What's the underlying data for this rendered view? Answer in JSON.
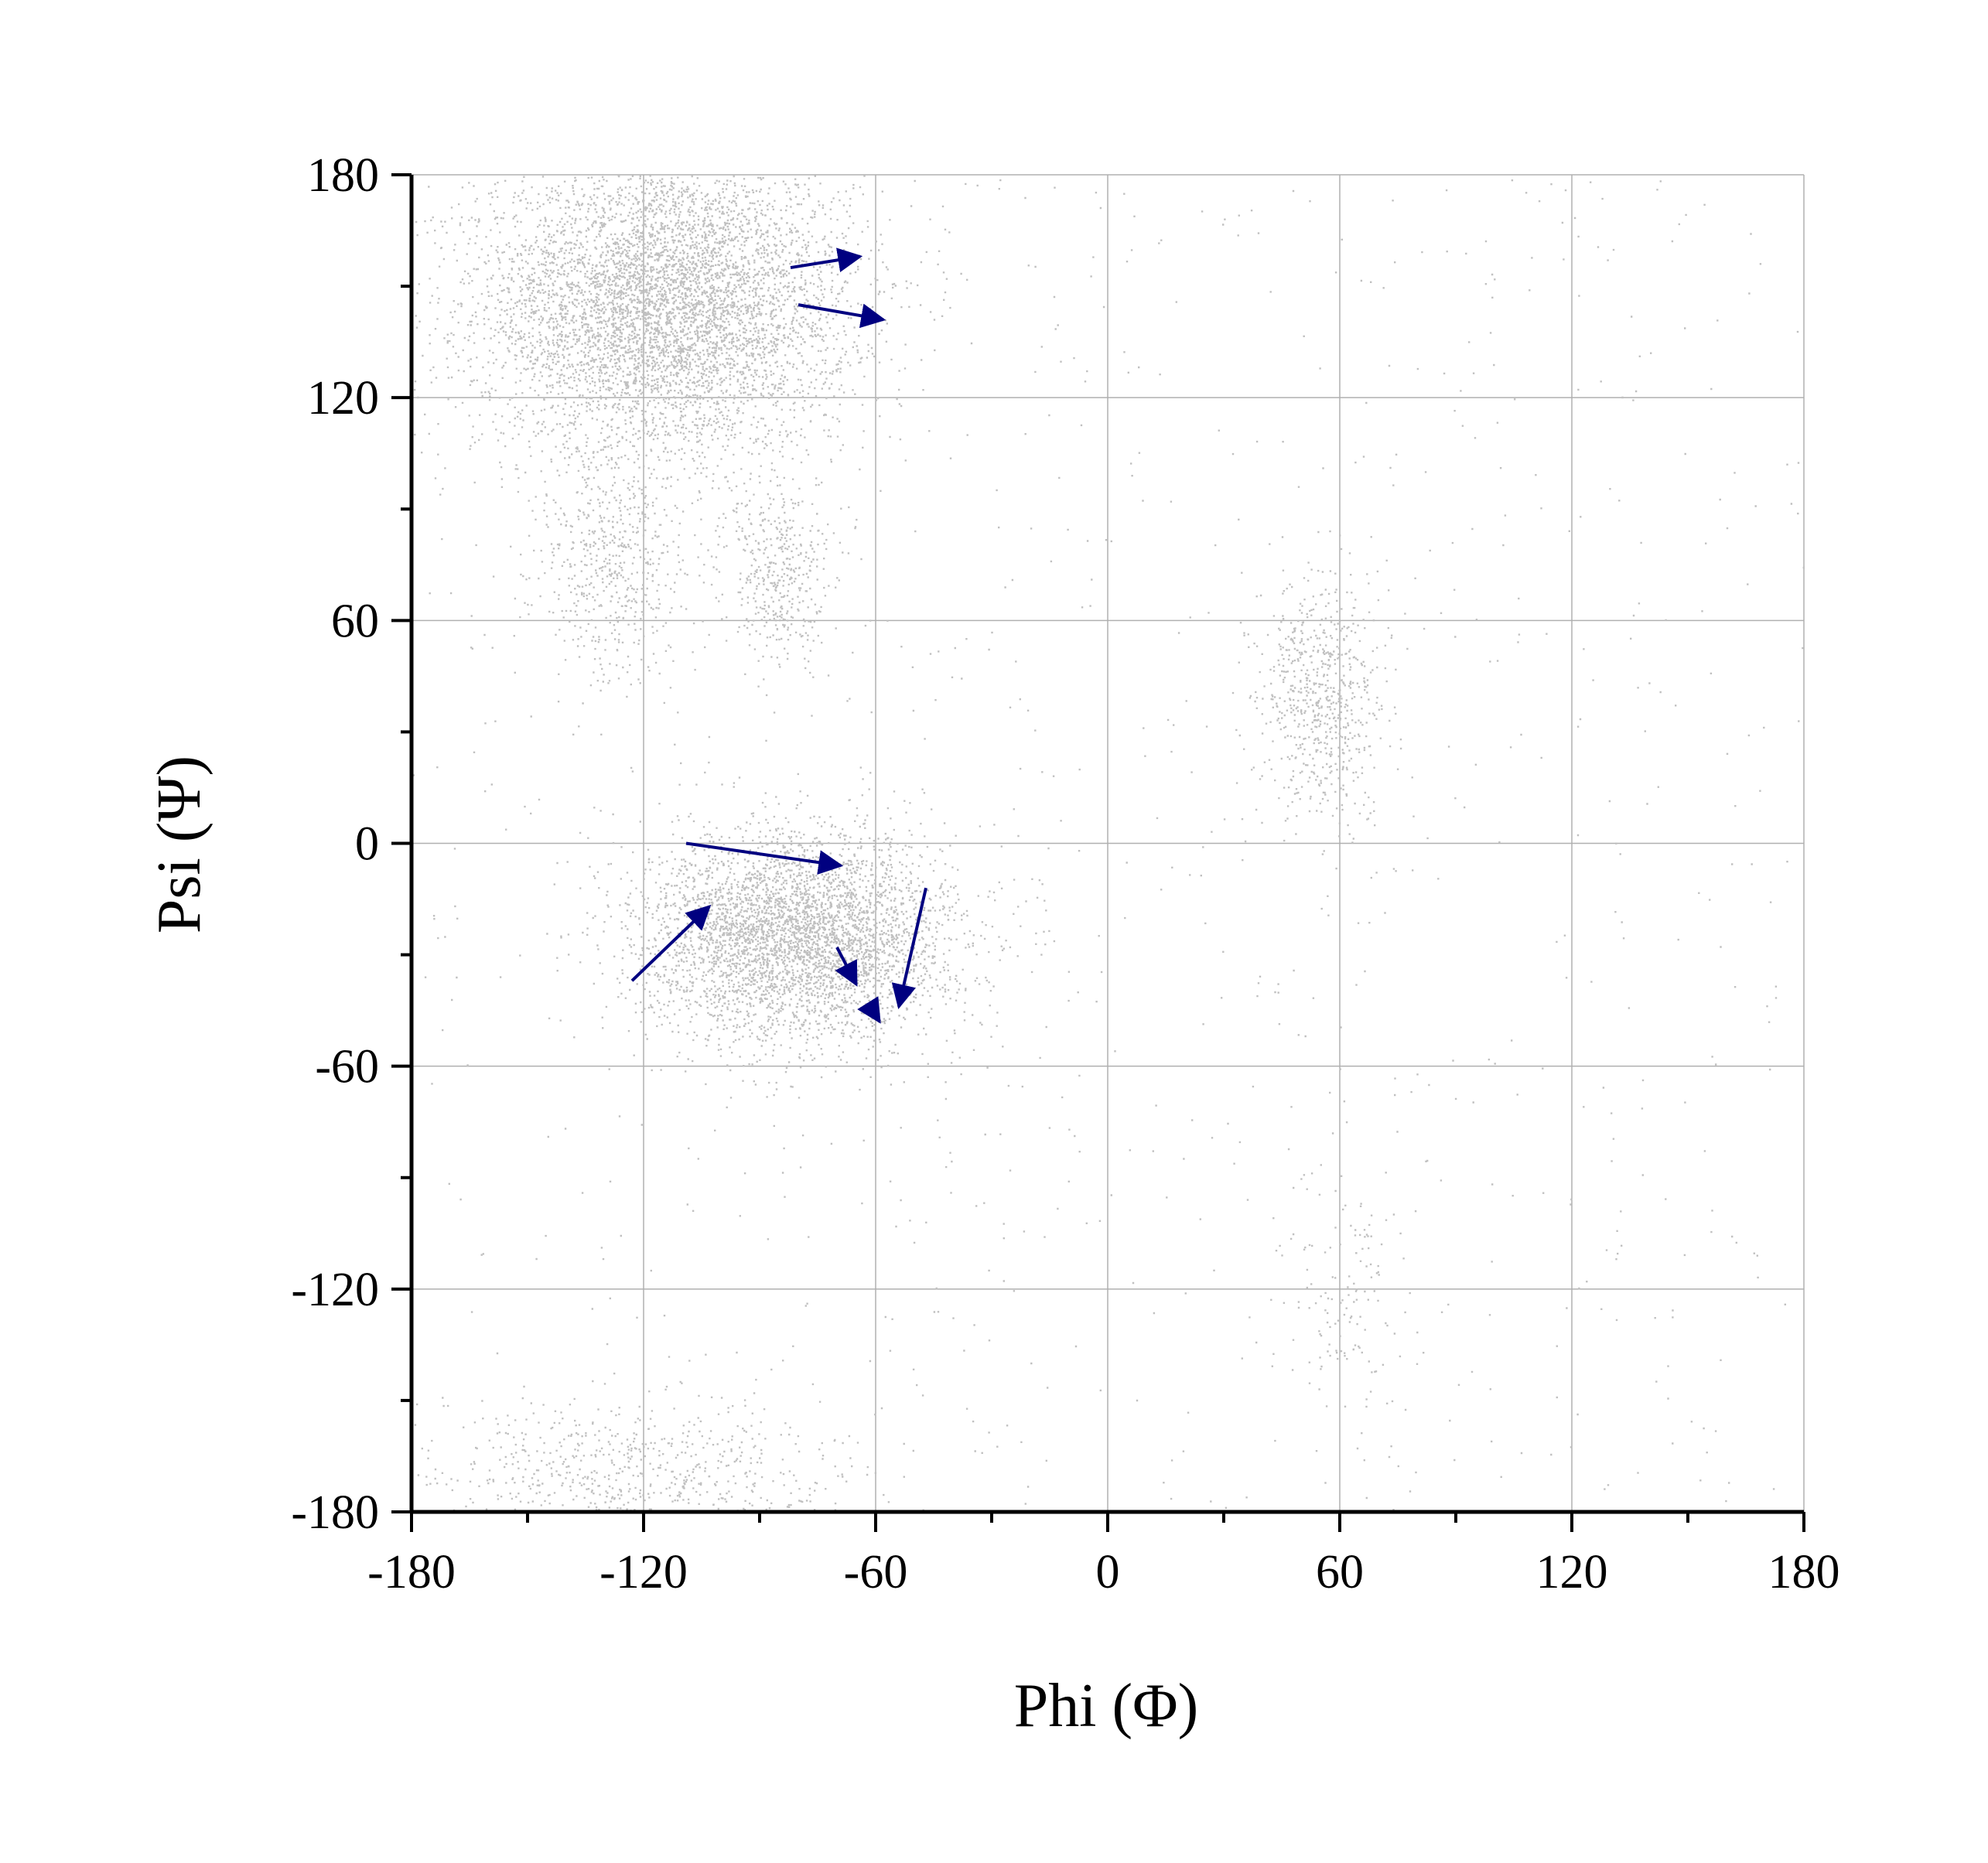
{
  "chart_data": {
    "type": "scatter",
    "title": "",
    "xlabel": "Phi (Φ)",
    "ylabel": "Psi (Ψ)",
    "xlim": [
      -180,
      180
    ],
    "ylim": [
      -180,
      180
    ],
    "xticks": [
      -180,
      -120,
      -60,
      0,
      60,
      120,
      180
    ],
    "yticks": [
      -180,
      -120,
      -60,
      0,
      60,
      120,
      180
    ],
    "x_tick_labels": [
      "-180",
      "-120",
      "-60",
      "0",
      "60",
      "120",
      "180"
    ],
    "y_tick_labels": [
      "-180",
      "-120",
      "-60",
      "0",
      "60",
      "120",
      "180"
    ],
    "grid": true,
    "colors": {
      "points": "#c0c0c0",
      "arrows": "#000080",
      "grid": "#b0b0b0",
      "axis": "#000000"
    },
    "point_clusters": [
      {
        "region": "beta-sheet",
        "center": [
          -115,
          145
        ],
        "spread": [
          24,
          20
        ],
        "weight": 0.42
      },
      {
        "region": "alpha-helix",
        "center": [
          -80,
          -25
        ],
        "spread": [
          20,
          14
        ],
        "weight": 0.3
      },
      {
        "region": "polyproline-bridge-left",
        "center": [
          -128,
          75
        ],
        "spread": [
          10,
          16
        ],
        "weight": 0.04
      },
      {
        "region": "polyproline-bridge-right",
        "center": [
          -85,
          72
        ],
        "spread": [
          7,
          12
        ],
        "weight": 0.03
      },
      {
        "region": "left-handed-helix",
        "center": [
          55,
          40
        ],
        "spread": [
          8,
          16
        ],
        "weight": 0.05
      },
      {
        "region": "lower-left-wrap",
        "center": [
          -125,
          -170
        ],
        "spread": [
          30,
          10
        ],
        "weight": 0.05
      },
      {
        "region": "gamma-region",
        "center": [
          62,
          -125
        ],
        "spread": [
          8,
          20
        ],
        "weight": 0.01
      }
    ],
    "arrows": [
      {
        "from": [
          -82,
          155
        ],
        "to": [
          -64,
          158
        ]
      },
      {
        "from": [
          -80,
          145
        ],
        "to": [
          -58,
          141
        ]
      },
      {
        "from": [
          -109,
          0
        ],
        "to": [
          -69,
          -6
        ]
      },
      {
        "from": [
          -123,
          -37
        ],
        "to": [
          -103,
          -17
        ]
      },
      {
        "from": [
          -70,
          -28
        ],
        "to": [
          -65,
          -38
        ]
      },
      {
        "from": [
          -62,
          -43
        ],
        "to": [
          -59,
          -48
        ]
      },
      {
        "from": [
          -47,
          -12
        ],
        "to": [
          -54,
          -44
        ]
      }
    ]
  }
}
